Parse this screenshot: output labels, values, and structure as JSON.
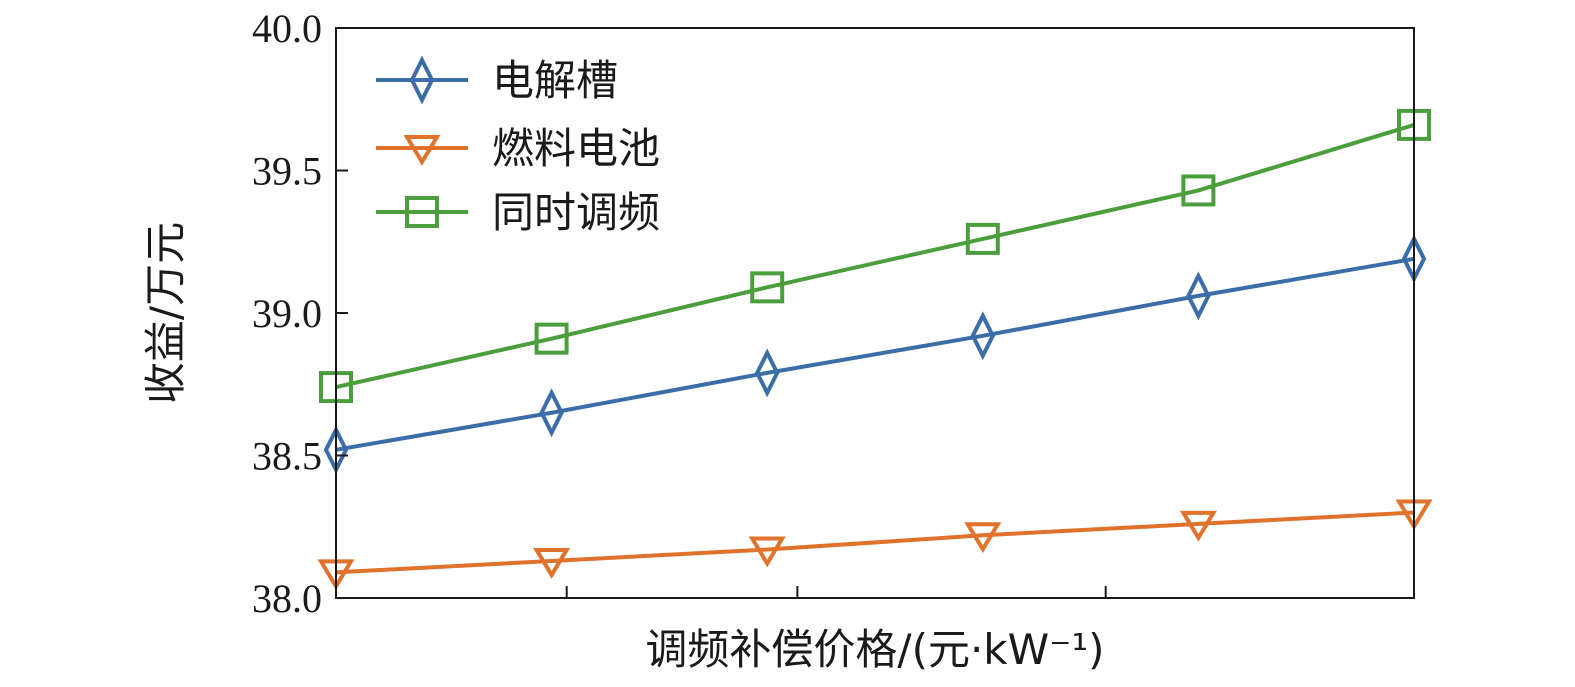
{
  "chart_data": {
    "type": "line",
    "title": "",
    "xlabel": "调频补偿价格/(元·kW⁻¹)",
    "ylabel": "收益/万元",
    "x": [
      0,
      1,
      2,
      3,
      4,
      5
    ],
    "xlim": [
      0,
      5
    ],
    "ylim": [
      38.0,
      40.0
    ],
    "yticks": [
      38.0,
      38.5,
      39.0,
      39.5,
      40.0
    ],
    "ytick_labels": [
      "38.0",
      "38.5",
      "39.0",
      "39.5",
      "40.0"
    ],
    "xtick_positions": [
      1.07,
      2.14,
      3.57
    ],
    "xtick_labels": [
      "",
      "",
      ""
    ],
    "grid": false,
    "legend_position": "top-left",
    "series": [
      {
        "name": "电解槽",
        "marker": "diamond",
        "color": "#3b6ea8",
        "values": [
          38.52,
          38.65,
          38.79,
          38.92,
          39.06,
          39.19
        ]
      },
      {
        "name": "燃料电池",
        "marker": "triangle-down",
        "color": "#e0722b",
        "values": [
          38.09,
          38.13,
          38.17,
          38.22,
          38.26,
          38.3
        ]
      },
      {
        "name": "同时调频",
        "marker": "square",
        "color": "#4b9e3c",
        "values": [
          38.74,
          38.91,
          39.09,
          39.26,
          39.43,
          39.66
        ]
      }
    ]
  }
}
